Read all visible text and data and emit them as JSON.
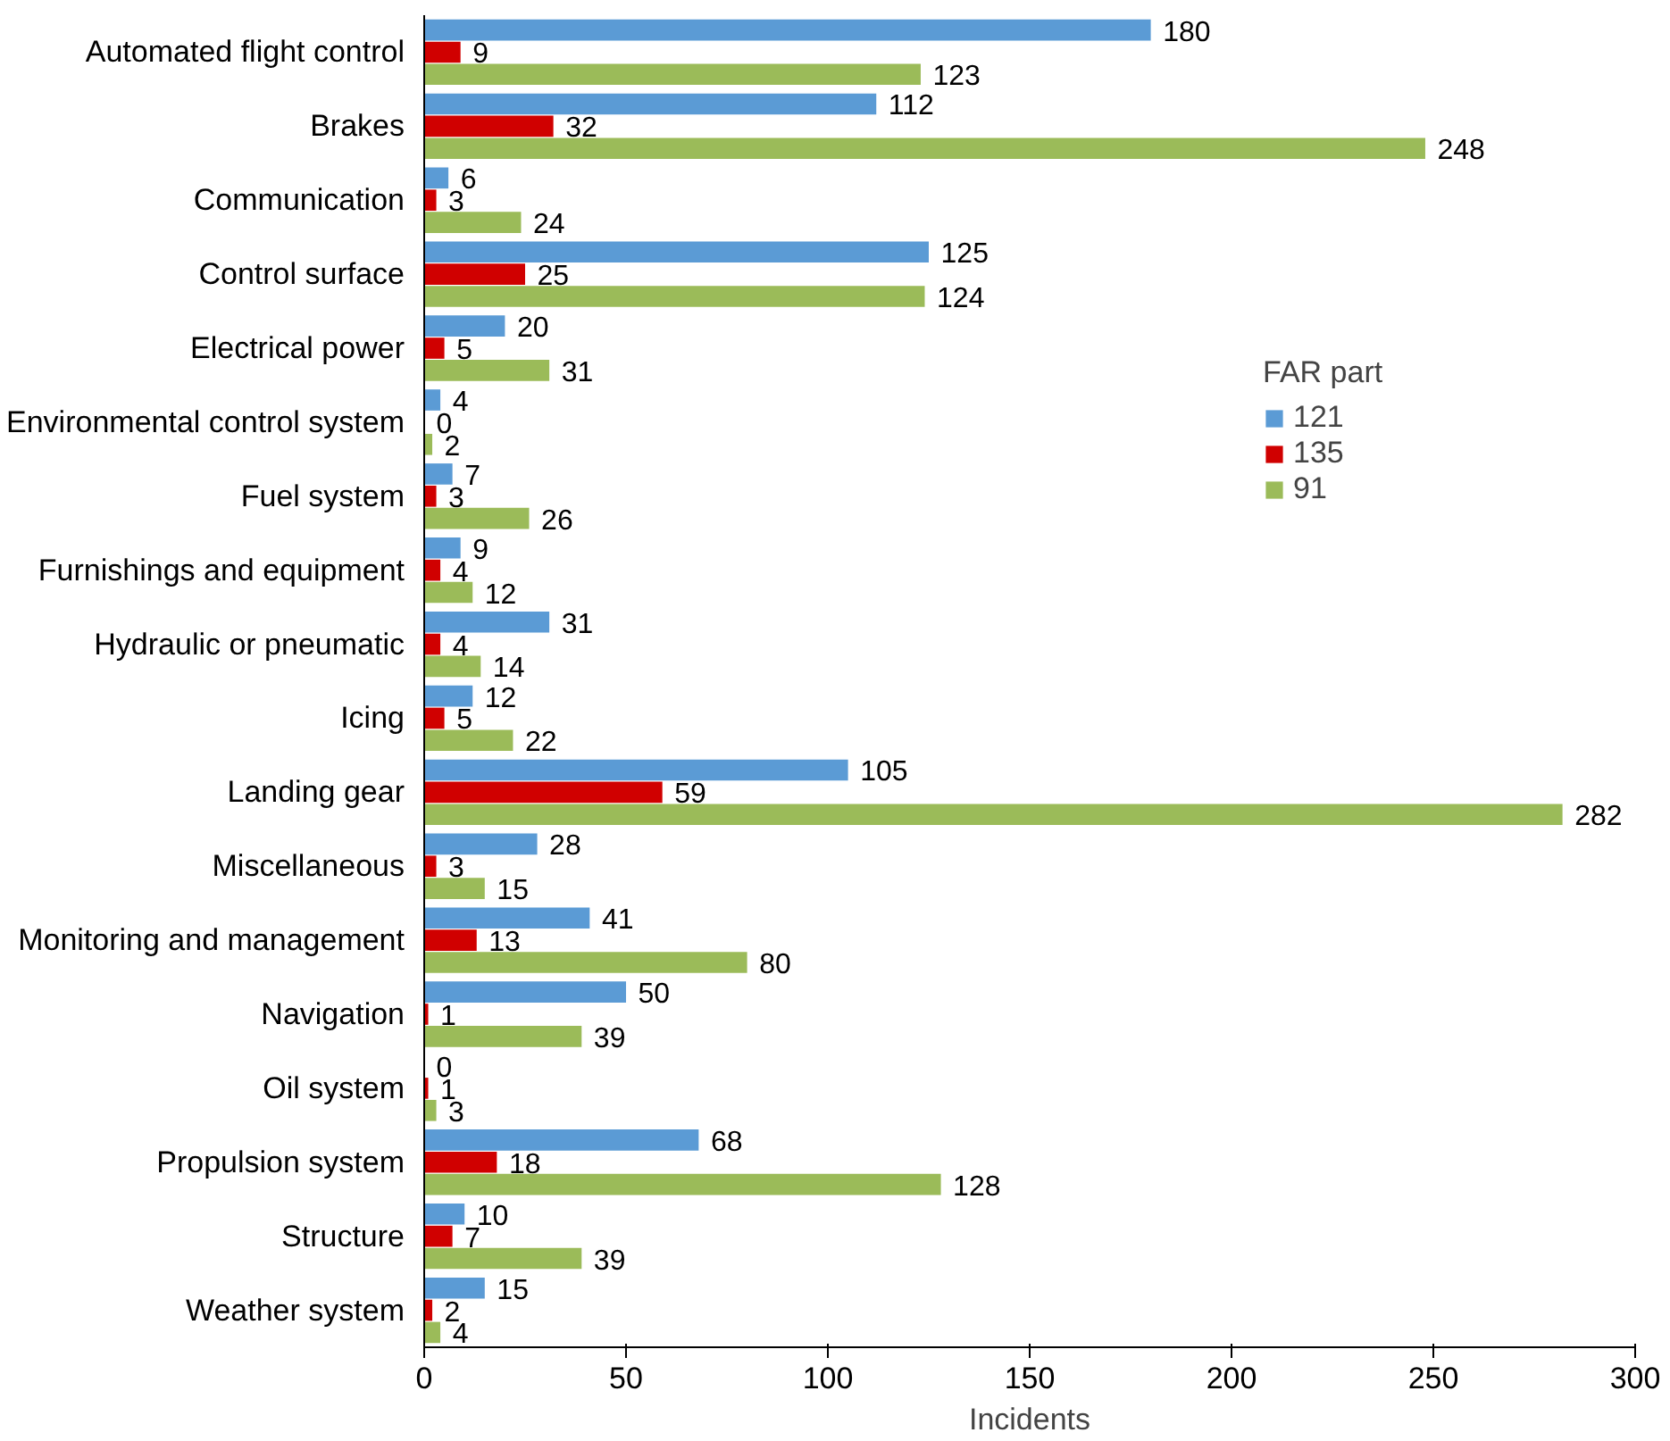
{
  "chart_data": {
    "type": "bar",
    "orientation": "horizontal",
    "xlabel": "Incidents",
    "legend_title": "FAR part",
    "legend": "right",
    "grid": false,
    "data_labels": true,
    "categories": [
      "Automated flight control",
      "Brakes",
      "Communication",
      "Control surface",
      "Electrical power",
      "Environmental control system",
      "Fuel system",
      "Furnishings and equipment",
      "Hydraulic or pneumatic",
      "Icing",
      "Landing gear",
      "Miscellaneous",
      "Monitoring and management",
      "Navigation",
      "Oil system",
      "Propulsion system",
      "Structure",
      "Weather system"
    ],
    "xlim": [
      0,
      300
    ],
    "xticks": [
      0,
      50,
      100,
      150,
      200,
      250,
      300
    ],
    "series": [
      {
        "name": "121",
        "color": "#5b9bd5",
        "values": [
          180,
          112,
          6,
          125,
          20,
          4,
          7,
          9,
          31,
          12,
          105,
          28,
          41,
          50,
          0,
          68,
          10,
          15
        ]
      },
      {
        "name": "135",
        "color": "#d00000",
        "values": [
          9,
          32,
          3,
          25,
          5,
          0,
          3,
          4,
          4,
          5,
          59,
          3,
          13,
          1,
          1,
          18,
          7,
          2
        ]
      },
      {
        "name": "91",
        "color": "#9bbb59",
        "values": [
          123,
          248,
          24,
          124,
          31,
          2,
          26,
          12,
          14,
          22,
          282,
          15,
          80,
          39,
          3,
          128,
          39,
          4
        ]
      }
    ]
  }
}
